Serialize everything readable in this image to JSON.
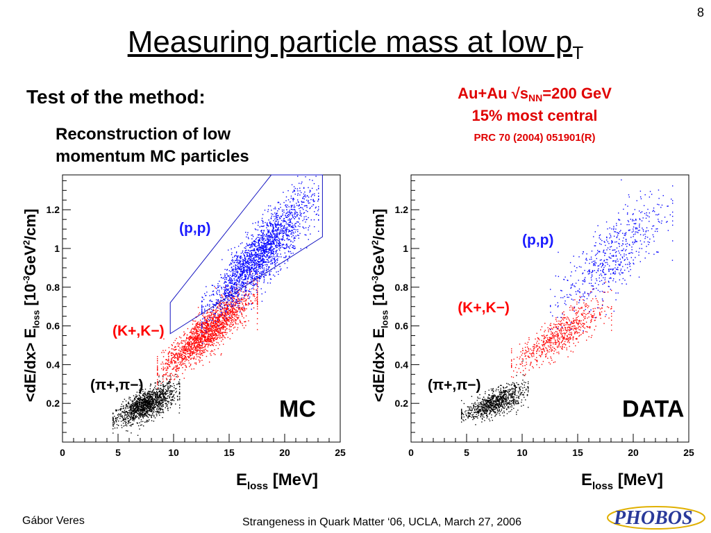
{
  "slide": {
    "number": "8",
    "title_main": "Measuring particle mass at low p",
    "title_sub": "T",
    "subtitle": "Test of the method:",
    "reconstruction_line1": "Reconstruction of low",
    "reconstruction_line2": "momentum MC particles",
    "collision_prefix": "Au+Au  √s",
    "collision_sub": "NN",
    "collision_suffix": "=200 GeV",
    "centrality": "15% most central",
    "reference": "PRC 70 (2004) 051901(R)",
    "footer_author": "Gábor Veres",
    "footer_event": "Strangeness in Quark Matter ‘06, UCLA, March 27, 2006",
    "logo_text": "PHOBOS"
  },
  "colors": {
    "proton": "#0000ff",
    "kaon": "#ff0000",
    "pion": "#000000",
    "text_red": "#e00000",
    "label_blue": "#1a1aff"
  },
  "chart_data": [
    {
      "type": "scatter",
      "panel_label": "MC",
      "xlabel_main": "E",
      "xlabel_sub": "loss",
      "xlabel_unit": " [MeV]",
      "ylabel_main": "<dE/dx> E",
      "ylabel_sub": "loss",
      "ylabel_unit_a": "  [10",
      "ylabel_unit_sup1": "-3",
      "ylabel_unit_b": "GeV",
      "ylabel_unit_sup2": "2",
      "ylabel_unit_c": "/cm]",
      "xlim": [
        0,
        25
      ],
      "ylim": [
        0,
        1.38
      ],
      "xticks": [
        0,
        5,
        10,
        15,
        20,
        25
      ],
      "xtick_labels": [
        "0",
        "5",
        "10",
        "15",
        "20",
        "25"
      ],
      "yticks": [
        0.2,
        0.4,
        0.6,
        0.8,
        1.0,
        1.2
      ],
      "ytick_labels": [
        "0.2",
        "0.4",
        "0.6",
        "0.8",
        "1",
        "1.2"
      ],
      "series": [
        {
          "name": "(π+,π−)",
          "color": "pion",
          "cluster": {
            "x": [
              4.5,
              10.5
            ],
            "y_at_xmin": 0.12,
            "y_at_xmax": 0.27,
            "width": 0.035,
            "count": 1400
          }
        },
        {
          "name": "(K+,K−)",
          "color": "kaon",
          "cluster": {
            "x": [
              8.5,
              17.5
            ],
            "y_at_xmin": 0.36,
            "y_at_xmax": 0.78,
            "width": 0.05,
            "count": 1900
          }
        },
        {
          "name": "(p,p)",
          "color": "proton",
          "cluster": {
            "x": [
              12.5,
              23
            ],
            "y_at_xmin": 0.66,
            "y_at_xmax": 1.28,
            "width": 0.07,
            "count": 2200
          }
        }
      ],
      "cut_polygon": [
        [
          9.7,
          0.72
        ],
        [
          18.8,
          1.38
        ],
        [
          23.4,
          1.38
        ],
        [
          23.4,
          1.06
        ],
        [
          9.7,
          0.56
        ]
      ],
      "labels": [
        {
          "text": "(p,p)",
          "series": "proton",
          "x": 10.5,
          "y": 1.08
        },
        {
          "text": "(K+,K−)",
          "series": "kaon",
          "x": 4.5,
          "y": 0.55
        },
        {
          "text": "(π+,π−)",
          "series": "pion",
          "x": 2.5,
          "y": 0.27
        }
      ]
    },
    {
      "type": "scatter",
      "panel_label": "DATA",
      "xlabel_main": "E",
      "xlabel_sub": "loss",
      "xlabel_unit": " [MeV]",
      "ylabel_main": "<dE/dx> E",
      "ylabel_sub": "loss",
      "ylabel_unit_a": "  [10",
      "ylabel_unit_sup1": "-3",
      "ylabel_unit_b": "GeV",
      "ylabel_unit_sup2": "2",
      "ylabel_unit_c": "/cm]",
      "xlim": [
        0,
        25
      ],
      "ylim": [
        0,
        1.38
      ],
      "xticks": [
        0,
        5,
        10,
        15,
        20,
        25
      ],
      "xtick_labels": [
        "0",
        "5",
        "10",
        "15",
        "20",
        "25"
      ],
      "yticks": [
        0.2,
        0.4,
        0.6,
        0.8,
        1.0,
        1.2
      ],
      "ytick_labels": [
        "0.2",
        "0.4",
        "0.6",
        "0.8",
        "1",
        "1.2"
      ],
      "series": [
        {
          "name": "(π+,π−)",
          "color": "pion",
          "cluster": {
            "x": [
              4.5,
              10.5
            ],
            "y_at_xmin": 0.14,
            "y_at_xmax": 0.27,
            "width": 0.03,
            "count": 900
          }
        },
        {
          "name": "(K+,K−)",
          "color": "kaon",
          "cluster": {
            "x": [
              9,
              18
            ],
            "y_at_xmin": 0.4,
            "y_at_xmax": 0.72,
            "width": 0.05,
            "count": 700
          }
        },
        {
          "name": "(p,p)",
          "color": "proton",
          "cluster": {
            "x": [
              12.5,
              23.5
            ],
            "y_at_xmin": 0.68,
            "y_at_xmax": 1.24,
            "width": 0.09,
            "count": 600
          }
        }
      ],
      "labels": [
        {
          "text": "(p,p)",
          "series": "proton",
          "x": 10,
          "y": 1.02
        },
        {
          "text": "(K+,K−)",
          "series": "kaon",
          "x": 4.2,
          "y": 0.67
        },
        {
          "text": "(π+,π−)",
          "series": "pion",
          "x": 1.5,
          "y": 0.27
        }
      ]
    }
  ]
}
